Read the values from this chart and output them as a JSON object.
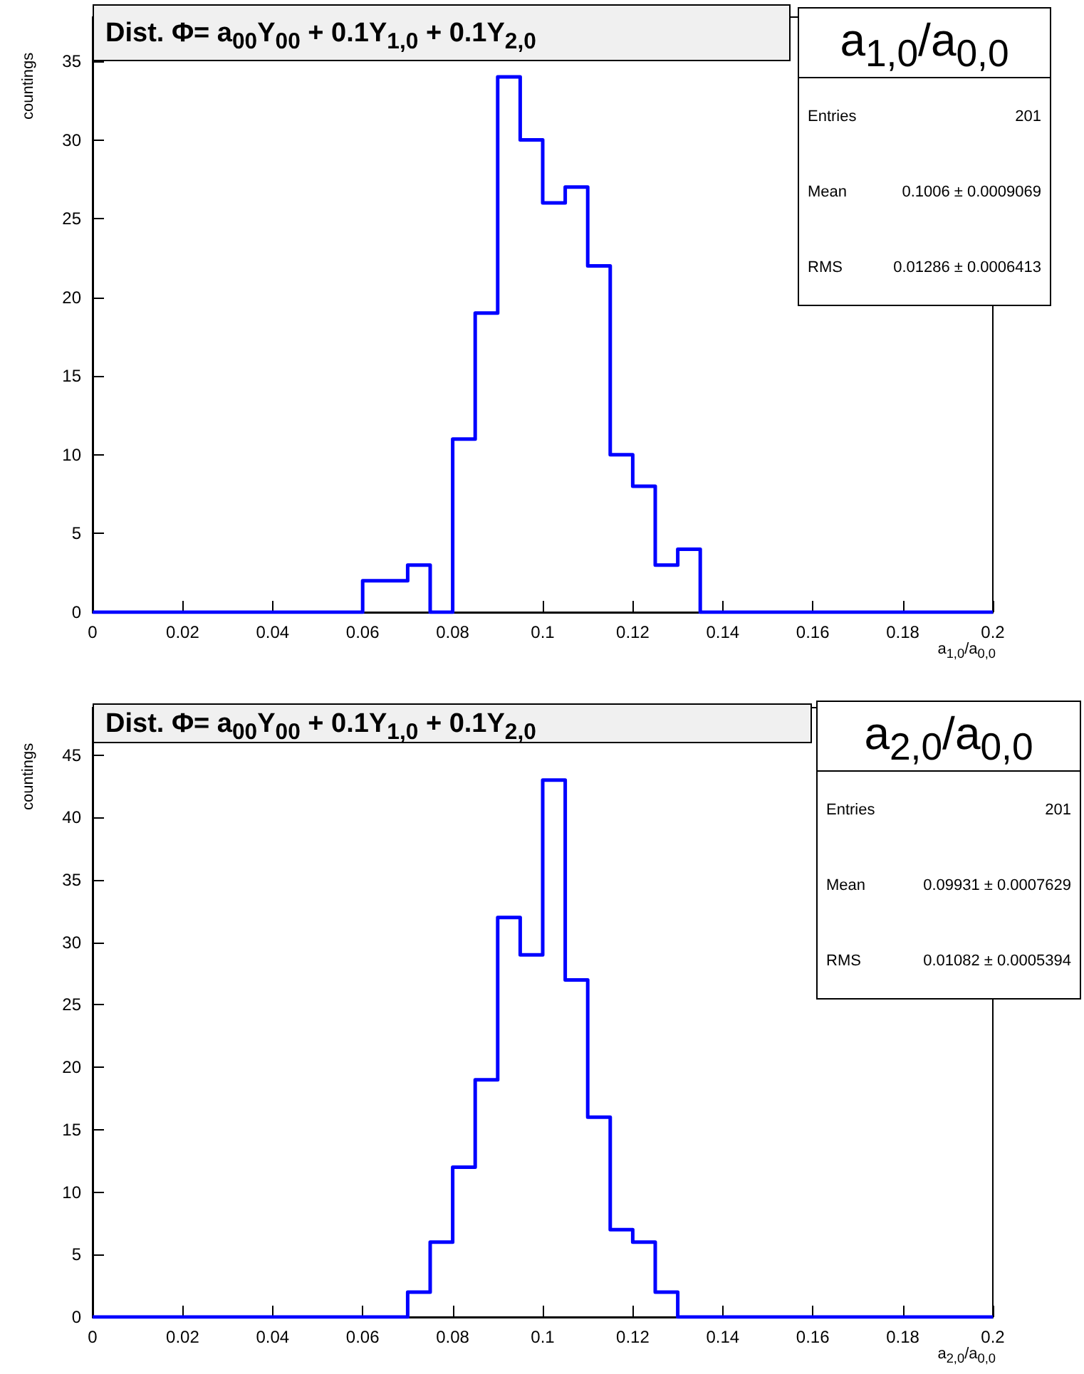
{
  "chart_data": [
    {
      "type": "histogram",
      "title": "Dist. Φ= a$_{00}$Y$_{00}$ + 0.1Y$_{1,0}$ + 0.1Y$_{2,0}$",
      "subtitle": "a$_{1,0}$/a$_{0,0}$",
      "xlabel": "a$_{1,0}$/a$_{0,0}$",
      "ylabel": "countings",
      "annotations": [
        "Entries",
        "201",
        "Mean",
        "0.1006 ± 0.0009069",
        "RMS",
        "0.01286 ± 0.0006413"
      ],
      "bins": [
        0,
        0.005,
        0.01,
        0.015,
        0.02,
        0.025,
        0.03,
        0.035,
        0.04,
        0.045,
        0.05,
        0.055,
        0.06,
        0.065,
        0.07,
        0.075,
        0.08,
        0.085,
        0.09,
        0.095,
        0.1,
        0.105,
        0.11,
        0.115,
        0.12,
        0.125,
        0.13,
        0.135,
        0.14,
        0.145,
        0.15,
        0.155,
        0.16,
        0.165,
        0.17,
        0.175,
        0.18,
        0.185,
        0.19,
        0.195,
        0.2
      ],
      "values": [
        0,
        0,
        0,
        0,
        0,
        0,
        0,
        0,
        0,
        0,
        0,
        0,
        2,
        2,
        3,
        0,
        11,
        19,
        34,
        30,
        26,
        27,
        22,
        10,
        8,
        3,
        4,
        0,
        0,
        0,
        0,
        0,
        0,
        0,
        0,
        0,
        0,
        0,
        0,
        0
      ],
      "color": "#0000ff",
      "xlim": [
        0,
        0.2
      ],
      "xticks": [
        0,
        0.02,
        0.04,
        0.06,
        0.08,
        0.1,
        0.12,
        0.14,
        0.16,
        0.18,
        0.2
      ],
      "ylim": [
        0,
        37.8
      ],
      "yticks": [
        0,
        5,
        10,
        15,
        20,
        25,
        30,
        35
      ],
      "grid": false
    },
    {
      "type": "histogram",
      "title": "Dist. Φ= a$_{00}$Y$_{00}$ + 0.1Y$_{1,0}$ + 0.1Y$_{2,0}$",
      "subtitle": "a$_{2,0}$/a$_{0,0}$",
      "xlabel": "a$_{2,0}$/a$_{0,0}$",
      "ylabel": "countings",
      "annotations": [
        "Entries",
        "201",
        "Mean",
        "0.09931 ± 0.0007629",
        "RMS",
        "0.01082 ± 0.0005394"
      ],
      "bins": [
        0,
        0.005,
        0.01,
        0.015,
        0.02,
        0.025,
        0.03,
        0.035,
        0.04,
        0.045,
        0.05,
        0.055,
        0.06,
        0.065,
        0.07,
        0.075,
        0.08,
        0.085,
        0.09,
        0.095,
        0.1,
        0.105,
        0.11,
        0.115,
        0.12,
        0.125,
        0.13,
        0.135,
        0.14,
        0.145,
        0.15,
        0.155,
        0.16,
        0.165,
        0.17,
        0.175,
        0.18,
        0.185,
        0.19,
        0.195,
        0.2
      ],
      "values": [
        0,
        0,
        0,
        0,
        0,
        0,
        0,
        0,
        0,
        0,
        0,
        0,
        0,
        0,
        2,
        6,
        12,
        19,
        32,
        29,
        43,
        27,
        16,
        7,
        6,
        2,
        0,
        0,
        0,
        0,
        0,
        0,
        0,
        0,
        0,
        0,
        0,
        0,
        0,
        0
      ],
      "color": "#0000ff",
      "xlim": [
        0,
        0.2
      ],
      "xticks": [
        0,
        0.02,
        0.04,
        0.06,
        0.08,
        0.1,
        0.12,
        0.14,
        0.16,
        0.18,
        0.2
      ],
      "ylim": [
        0,
        48.8
      ],
      "yticks": [
        0,
        5,
        10,
        15,
        20,
        25,
        30,
        35,
        40,
        45
      ],
      "grid": false
    }
  ]
}
